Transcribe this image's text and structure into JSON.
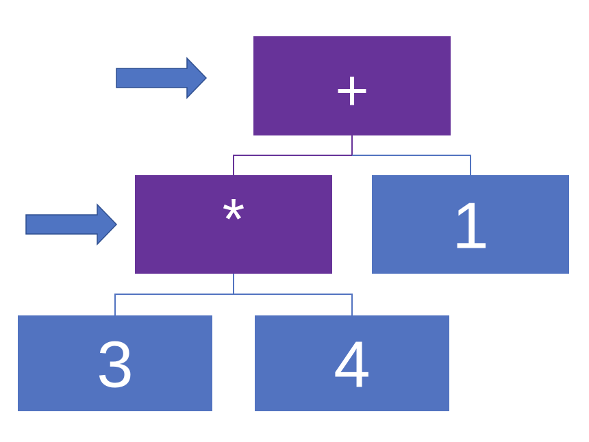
{
  "colors": {
    "active_node": "#673399",
    "inactive_node": "#5273c0",
    "active_connector": "#673399",
    "inactive_connector": "#5273c0",
    "arrow_fill": "#4f74c2",
    "arrow_stroke": "#2f4f8f",
    "label": "#ffffff"
  },
  "tree": {
    "root": {
      "label": "+",
      "active": true,
      "left": {
        "label": "*",
        "active": true,
        "left": {
          "label": "3",
          "active": false
        },
        "right": {
          "label": "4",
          "active": false
        }
      },
      "right": {
        "label": "1",
        "active": false
      }
    }
  },
  "arrows": {
    "icon": "right-arrow-icon",
    "point_to": [
      "root",
      "root-left"
    ]
  }
}
